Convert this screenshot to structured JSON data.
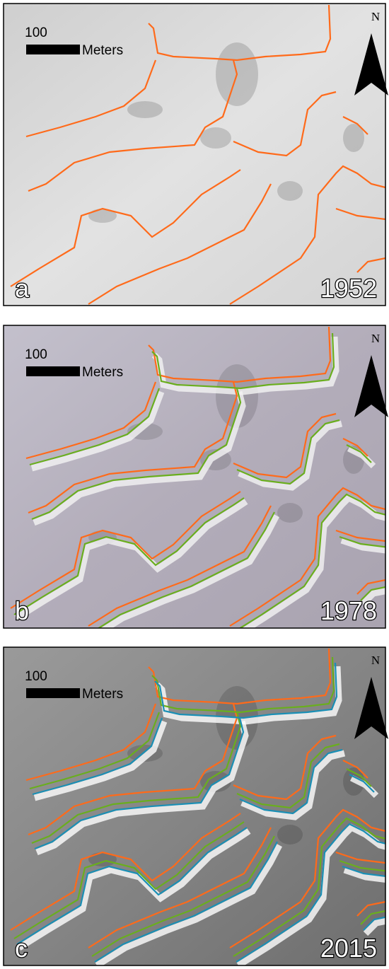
{
  "panels": [
    {
      "scale_value": "100",
      "scale_unit": "Meters",
      "north": "N",
      "label": "a",
      "year": "1952"
    },
    {
      "scale_value": "100",
      "scale_unit": "Meters",
      "north": "N",
      "label": "b",
      "year": "1978"
    },
    {
      "scale_value": "100",
      "scale_unit": "Meters",
      "north": "N",
      "label": "c",
      "year": "2015"
    }
  ]
}
